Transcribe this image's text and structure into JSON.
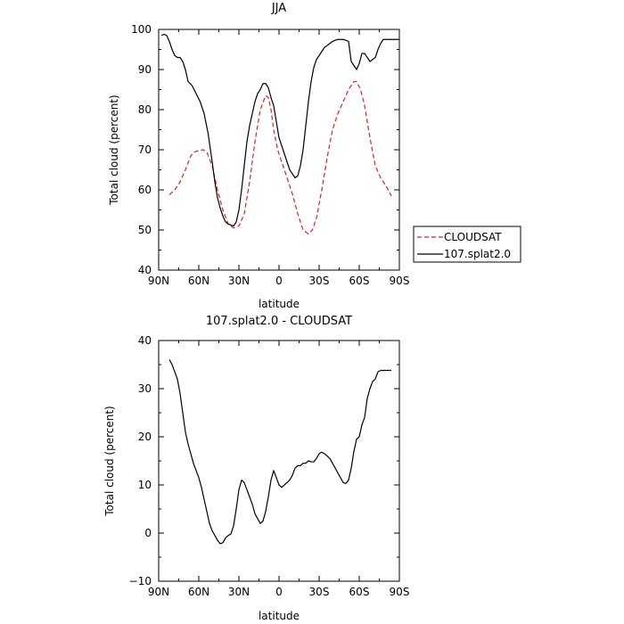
{
  "chart_data": [
    {
      "type": "line",
      "title": "JJA",
      "xlabel": "latitude",
      "ylabel": "Total cloud (percent)",
      "xlim": [
        -90,
        90
      ],
      "ylim": [
        40,
        100
      ],
      "xticks": [
        -90,
        -60,
        -30,
        0,
        30,
        60,
        90
      ],
      "xtick_labels": [
        "90N",
        "60N",
        "30N",
        "0",
        "30S",
        "60S",
        "90S"
      ],
      "yticks": [
        40,
        50,
        60,
        70,
        80,
        90,
        100
      ],
      "ytick_labels": [
        "40",
        "50",
        "60",
        "70",
        "80",
        "90",
        "100"
      ],
      "grid": false,
      "legend": "outside-right",
      "series": [
        {
          "name": "CLOUDSAT",
          "color": "#e02020",
          "dash": "dashed",
          "x": [
            -82,
            -78,
            -74,
            -70,
            -66,
            -63,
            -60,
            -57,
            -54,
            -50,
            -46,
            -42,
            -38,
            -34,
            -30,
            -26,
            -22,
            -18,
            -14,
            -10,
            -8,
            -6,
            -4,
            -1,
            2,
            6,
            10,
            14,
            18,
            22,
            25,
            28,
            32,
            36,
            40,
            44,
            48,
            52,
            56,
            58,
            61,
            64,
            68,
            72,
            76,
            80,
            84
          ],
          "y": [
            58.8,
            60,
            62,
            65,
            68.5,
            69.5,
            69.8,
            70,
            69.5,
            66,
            60,
            55,
            51.5,
            50.5,
            51,
            54,
            62,
            72,
            80,
            83.5,
            83,
            80,
            75,
            70,
            67,
            63,
            59,
            54,
            50,
            49,
            50,
            53,
            60,
            68,
            75,
            79,
            82,
            85,
            87,
            87,
            85,
            81,
            73,
            66,
            63,
            61,
            58.5
          ]
        },
        {
          "name": "107.splat2.0",
          "color": "#000000",
          "dash": "solid",
          "x": [
            -88,
            -86,
            -84,
            -82,
            -80,
            -78,
            -76,
            -74,
            -72,
            -70,
            -68,
            -65,
            -62,
            -59,
            -56,
            -53,
            -50,
            -48,
            -46,
            -44,
            -42,
            -40,
            -38,
            -36,
            -34,
            -32,
            -30,
            -28,
            -26,
            -24,
            -22,
            -20,
            -18,
            -16,
            -14,
            -12,
            -10,
            -8,
            -6,
            -4,
            -2,
            0,
            2,
            4,
            6,
            8,
            10,
            12,
            14,
            16,
            18,
            20,
            22,
            24,
            26,
            28,
            30,
            32,
            34,
            36,
            38,
            40,
            42,
            44,
            46,
            48,
            50,
            52,
            54,
            56,
            58,
            60,
            62,
            64,
            66,
            68,
            70,
            72,
            74,
            76,
            78,
            80,
            82,
            84,
            86,
            88,
            90
          ],
          "y": [
            98.5,
            98.8,
            98.5,
            97,
            95,
            93.5,
            93,
            93,
            92,
            90,
            87,
            86,
            84,
            82,
            79,
            74,
            67,
            62,
            58,
            55.5,
            53.5,
            52,
            51.5,
            51.2,
            51,
            52,
            55,
            60,
            66,
            72,
            76,
            79,
            82,
            84,
            85,
            86.5,
            86.5,
            85.5,
            83,
            81,
            77,
            73,
            71,
            69,
            67,
            65,
            64,
            63,
            63.5,
            66,
            70,
            76,
            82,
            87,
            90.5,
            92.5,
            93.5,
            94.5,
            95.5,
            96,
            96.5,
            97,
            97.3,
            97.5,
            97.5,
            97.5,
            97.3,
            97,
            92,
            91,
            90,
            91.5,
            94,
            94,
            93,
            92,
            92.5,
            93,
            95,
            96.5,
            97.5,
            97.5,
            97.5,
            97.5,
            97.5,
            97.5,
            97.5
          ]
        }
      ]
    },
    {
      "type": "line",
      "title": "107.splat2.0 - CLOUDSAT",
      "xlabel": "latitude",
      "ylabel": "Total cloud (percent)",
      "xlim": [
        -90,
        90
      ],
      "ylim": [
        -10,
        40
      ],
      "xticks": [
        -90,
        -60,
        -30,
        0,
        30,
        60,
        90
      ],
      "xtick_labels": [
        "90N",
        "60N",
        "30N",
        "0",
        "30S",
        "60S",
        "90S"
      ],
      "yticks": [
        -10,
        0,
        10,
        20,
        30,
        40
      ],
      "ytick_labels": [
        "−10",
        "0",
        "10",
        "20",
        "30",
        "40"
      ],
      "grid": false,
      "series": [
        {
          "color": "#000000",
          "dash": "solid",
          "x": [
            -82,
            -80,
            -78,
            -76,
            -74,
            -72,
            -70,
            -68,
            -66,
            -64,
            -62,
            -60,
            -58,
            -56,
            -54,
            -52,
            -50,
            -48,
            -46,
            -44,
            -42,
            -40,
            -38,
            -36,
            -34,
            -32,
            -30,
            -28,
            -26,
            -24,
            -22,
            -20,
            -18,
            -16,
            -14,
            -12,
            -10,
            -8,
            -6,
            -4,
            -2,
            0,
            2,
            4,
            6,
            8,
            10,
            12,
            14,
            16,
            18,
            20,
            22,
            24,
            26,
            28,
            30,
            32,
            34,
            36,
            38,
            40,
            42,
            44,
            46,
            48,
            50,
            52,
            54,
            56,
            58,
            60,
            62,
            64,
            66,
            68,
            70,
            72,
            74,
            76,
            78,
            80,
            82,
            84
          ],
          "y": [
            36,
            35,
            33.5,
            32,
            29,
            25,
            21,
            18.5,
            16.5,
            14.5,
            13,
            11.5,
            9.5,
            7,
            4.5,
            2,
            0.5,
            -0.5,
            -1.5,
            -2.2,
            -2,
            -1,
            -0.5,
            -0.2,
            1.5,
            5,
            9,
            11,
            10.5,
            9,
            7.5,
            6,
            4,
            3,
            2,
            2.5,
            4.5,
            7.5,
            11,
            13,
            11.5,
            10,
            9.5,
            10,
            10.5,
            11,
            12,
            13.5,
            14,
            14,
            14.5,
            14.5,
            15,
            14.8,
            14.8,
            15.5,
            16.5,
            16.8,
            16.5,
            16,
            15.5,
            14.5,
            13.5,
            12.5,
            11.5,
            10.5,
            10.3,
            11,
            13.5,
            17,
            19.5,
            20,
            22.5,
            24,
            28,
            30,
            31.5,
            32,
            33.5,
            33.8,
            33.8,
            33.8,
            33.8,
            33.8
          ]
        }
      ]
    }
  ]
}
